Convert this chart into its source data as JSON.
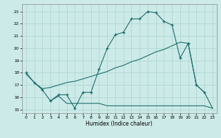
{
  "xlabel": "Humidex (Indice chaleur)",
  "background_color": "#cceae7",
  "grid_color": "#aad4d0",
  "line_color": "#1a6b6b",
  "xlim": [
    -0.5,
    23.5
  ],
  "ylim": [
    14.7,
    23.6
  ],
  "yticks": [
    15,
    16,
    17,
    18,
    19,
    20,
    21,
    22,
    23
  ],
  "xticks": [
    0,
    1,
    2,
    3,
    4,
    5,
    6,
    7,
    8,
    9,
    10,
    11,
    12,
    13,
    14,
    15,
    16,
    17,
    18,
    19,
    20,
    21,
    22,
    23
  ],
  "line1_x": [
    0,
    1,
    2,
    3,
    4,
    5,
    6,
    7,
    8,
    9,
    10,
    11,
    12,
    13,
    14,
    15,
    16,
    17,
    18,
    19,
    20,
    21,
    22
  ],
  "line1_y": [
    18.0,
    17.2,
    16.6,
    15.7,
    16.2,
    16.2,
    15.1,
    16.4,
    16.4,
    18.3,
    20.0,
    21.1,
    21.3,
    22.4,
    22.4,
    23.0,
    22.9,
    22.2,
    21.9,
    19.2,
    20.4,
    17.0,
    16.4
  ],
  "line2_x": [
    0,
    1,
    2,
    3,
    4,
    5,
    6,
    7,
    8,
    9,
    10,
    11,
    12,
    13,
    14,
    15,
    16,
    17,
    18,
    19,
    20,
    21,
    22,
    23
  ],
  "line2_y": [
    17.9,
    17.2,
    16.7,
    16.8,
    17.0,
    17.2,
    17.3,
    17.5,
    17.7,
    17.9,
    18.1,
    18.4,
    18.6,
    18.9,
    19.1,
    19.4,
    19.7,
    19.9,
    20.2,
    20.5,
    20.4,
    17.0,
    16.4,
    15.1
  ],
  "line3_x": [
    3,
    4,
    5,
    6,
    7,
    8,
    9,
    10,
    11,
    12,
    13,
    14,
    15,
    16,
    17,
    18,
    19,
    20,
    21,
    22,
    23
  ],
  "line3_y": [
    15.7,
    16.1,
    15.5,
    15.5,
    15.5,
    15.5,
    15.5,
    15.3,
    15.3,
    15.3,
    15.3,
    15.3,
    15.3,
    15.3,
    15.3,
    15.3,
    15.3,
    15.3,
    15.3,
    15.3,
    15.1
  ]
}
